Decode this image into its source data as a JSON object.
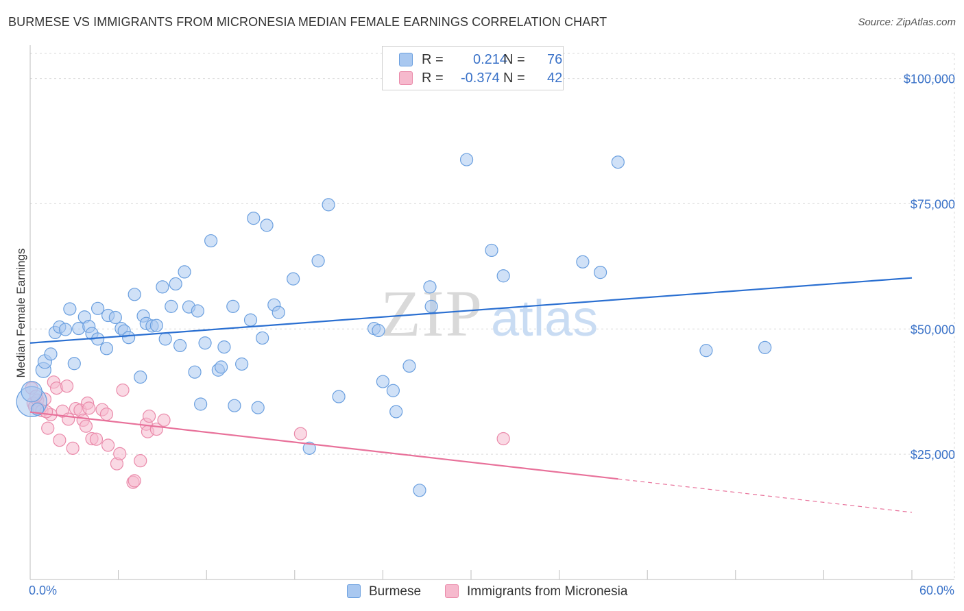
{
  "title": "BURMESE VS IMMIGRANTS FROM MICRONESIA MEDIAN FEMALE EARNINGS CORRELATION CHART",
  "source": "Source: ZipAtlas.com",
  "watermark": {
    "zip": "ZIP",
    "atlas": "atlas"
  },
  "legend": {
    "series1": {
      "r_label": "R =",
      "r_value": "0.214",
      "n_label": "N =",
      "n_value": "76"
    },
    "series2": {
      "r_label": "R =",
      "r_value": "-0.374",
      "n_label": "N =",
      "n_value": "42"
    }
  },
  "bottom_legend": {
    "series1": "Burmese",
    "series2": "Immigrants from Micronesia"
  },
  "x_ticks": {
    "left": "0.0%",
    "right": "60.0%"
  },
  "colors": {
    "blue_fill": "#a9c8f0",
    "blue_stroke": "#6a9fdf",
    "blue_line": "#2a6fd1",
    "pink_fill": "#f6b9cd",
    "pink_stroke": "#ea8aaa",
    "pink_line": "#e8719a",
    "axis_text": "#3a72c8",
    "grid": "#d9d9d9"
  },
  "chart_data": {
    "type": "scatter",
    "title": "BURMESE VS IMMIGRANTS FROM MICRONESIA MEDIAN FEMALE EARNINGS CORRELATION CHART",
    "xlabel": "",
    "ylabel": "Median Female Earnings",
    "xlim": [
      0,
      60
    ],
    "ylim": [
      0,
      105000
    ],
    "y_ticks": [
      {
        "value": 25000,
        "label": "$25,000"
      },
      {
        "value": 50000,
        "label": "$50,000"
      },
      {
        "value": 75000,
        "label": "$75,000"
      },
      {
        "value": 100000,
        "label": "$100,000"
      }
    ],
    "series": [
      {
        "name": "Burmese",
        "r": 0.214,
        "n": 76,
        "trend": {
          "x0": 0,
          "y0": 47200,
          "x1": 60,
          "y1": 60200,
          "solid_to": 60
        },
        "points": [
          [
            0.1,
            35500,
            22
          ],
          [
            0.1,
            37500,
            15
          ],
          [
            0.9,
            41800,
            11
          ],
          [
            1.0,
            43500,
            10
          ],
          [
            1.4,
            45000,
            9
          ],
          [
            1.7,
            49300,
            9
          ],
          [
            2.0,
            50400,
            9
          ],
          [
            2.4,
            49900,
            9
          ],
          [
            2.7,
            54000,
            9
          ],
          [
            3.0,
            43100,
            9
          ],
          [
            3.3,
            50100,
            9
          ],
          [
            3.7,
            52400,
            9
          ],
          [
            4.0,
            50500,
            9
          ],
          [
            4.2,
            49100,
            9
          ],
          [
            4.6,
            48000,
            9
          ],
          [
            4.6,
            54100,
            9
          ],
          [
            5.2,
            46100,
            9
          ],
          [
            5.3,
            52700,
            9
          ],
          [
            5.8,
            52300,
            9
          ],
          [
            6.2,
            50100,
            9
          ],
          [
            6.4,
            49600,
            9
          ],
          [
            6.7,
            48300,
            9
          ],
          [
            7.1,
            56900,
            9
          ],
          [
            7.5,
            40400,
            9
          ],
          [
            7.7,
            52600,
            9
          ],
          [
            7.9,
            51100,
            9
          ],
          [
            8.3,
            50600,
            9
          ],
          [
            8.6,
            50700,
            9
          ],
          [
            9.0,
            58400,
            9
          ],
          [
            9.2,
            48000,
            9
          ],
          [
            9.6,
            54500,
            9
          ],
          [
            9.9,
            59000,
            9
          ],
          [
            10.2,
            46700,
            9
          ],
          [
            10.5,
            61400,
            9
          ],
          [
            10.8,
            54400,
            9
          ],
          [
            11.2,
            41400,
            9
          ],
          [
            11.4,
            53600,
            9
          ],
          [
            11.6,
            35000,
            9
          ],
          [
            11.9,
            47200,
            9
          ],
          [
            12.3,
            67600,
            9
          ],
          [
            12.8,
            41800,
            9
          ],
          [
            13.0,
            42400,
            9
          ],
          [
            13.2,
            46400,
            9
          ],
          [
            13.8,
            54500,
            9
          ],
          [
            13.9,
            34700,
            9
          ],
          [
            14.4,
            43000,
            9
          ],
          [
            15.0,
            51800,
            9
          ],
          [
            15.2,
            72100,
            9
          ],
          [
            15.5,
            34300,
            9
          ],
          [
            15.8,
            48200,
            9
          ],
          [
            16.1,
            70700,
            9
          ],
          [
            16.6,
            54800,
            9
          ],
          [
            16.9,
            53300,
            9
          ],
          [
            17.9,
            60000,
            9
          ],
          [
            19.0,
            26200,
            9
          ],
          [
            19.6,
            63600,
            9
          ],
          [
            20.3,
            74800,
            9
          ],
          [
            21.0,
            36500,
            9
          ],
          [
            23.4,
            50100,
            9
          ],
          [
            23.7,
            49700,
            9
          ],
          [
            24.0,
            39500,
            9
          ],
          [
            24.7,
            37700,
            9
          ],
          [
            24.9,
            33500,
            9
          ],
          [
            25.8,
            42600,
            9
          ],
          [
            26.5,
            17800,
            9
          ],
          [
            27.2,
            58400,
            9
          ],
          [
            27.3,
            54500,
            9
          ],
          [
            29.7,
            83800,
            9
          ],
          [
            31.4,
            65700,
            9
          ],
          [
            32.2,
            60600,
            9
          ],
          [
            37.6,
            63400,
            9
          ],
          [
            38.8,
            61300,
            9
          ],
          [
            40.0,
            83300,
            9
          ],
          [
            46.0,
            45700,
            9
          ],
          [
            50.0,
            46300,
            9
          ],
          [
            0.5,
            34000,
            9
          ]
        ]
      },
      {
        "name": "Immigrants from Micronesia",
        "r": -0.374,
        "n": 42,
        "trend": {
          "x0": 0,
          "y0": 33400,
          "x1": 60,
          "y1": 13400,
          "solid_to": 40
        },
        "points": [
          [
            0.1,
            38200,
            9
          ],
          [
            0.2,
            35200,
            9
          ],
          [
            0.3,
            34500,
            9
          ],
          [
            0.5,
            35800,
            9
          ],
          [
            0.6,
            34100,
            9
          ],
          [
            0.8,
            33700,
            9
          ],
          [
            1.0,
            36000,
            9
          ],
          [
            1.2,
            30200,
            9
          ],
          [
            1.4,
            32900,
            9
          ],
          [
            1.6,
            39400,
            9
          ],
          [
            1.8,
            38200,
            9
          ],
          [
            2.0,
            27800,
            9
          ],
          [
            2.2,
            33600,
            9
          ],
          [
            2.5,
            38600,
            9
          ],
          [
            2.6,
            32000,
            9
          ],
          [
            2.9,
            26200,
            9
          ],
          [
            3.1,
            34100,
            9
          ],
          [
            3.4,
            33800,
            9
          ],
          [
            3.6,
            31800,
            9
          ],
          [
            3.8,
            30600,
            9
          ],
          [
            3.9,
            35200,
            9
          ],
          [
            4.0,
            34200,
            9
          ],
          [
            4.2,
            28100,
            9
          ],
          [
            4.5,
            28000,
            9
          ],
          [
            4.9,
            33900,
            9
          ],
          [
            5.2,
            33000,
            9
          ],
          [
            5.3,
            26800,
            9
          ],
          [
            5.9,
            23100,
            9
          ],
          [
            6.1,
            25100,
            9
          ],
          [
            6.3,
            37800,
            9
          ],
          [
            7.0,
            19400,
            9
          ],
          [
            7.1,
            19700,
            9
          ],
          [
            7.5,
            23700,
            9
          ],
          [
            7.9,
            31000,
            9
          ],
          [
            8.0,
            29500,
            9
          ],
          [
            8.1,
            32600,
            9
          ],
          [
            8.6,
            30000,
            9
          ],
          [
            9.1,
            31800,
            9
          ],
          [
            18.4,
            29100,
            9
          ],
          [
            32.2,
            28100,
            9
          ],
          [
            0.4,
            36600,
            9
          ],
          [
            1.1,
            33500,
            9
          ]
        ]
      }
    ]
  }
}
